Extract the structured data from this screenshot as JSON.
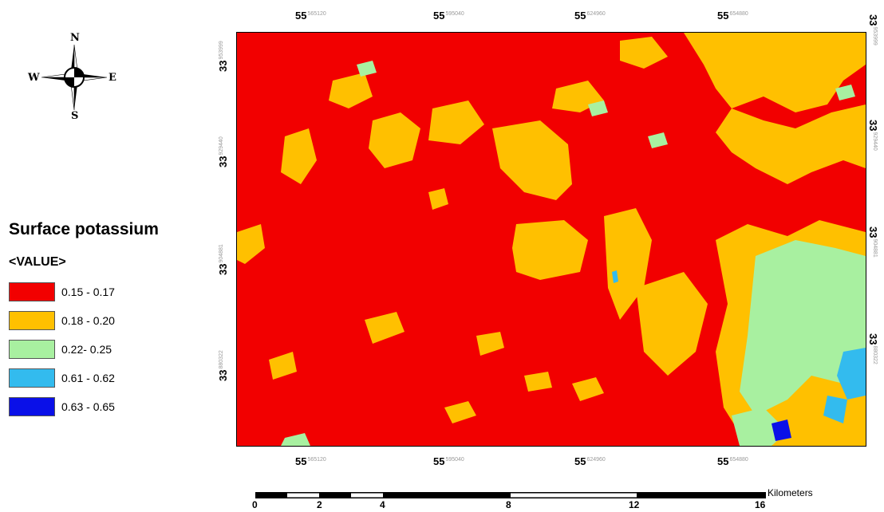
{
  "map": {
    "compass": {
      "north": "N",
      "south": "S",
      "east": "E",
      "west": "W"
    },
    "top_ticks": [
      {
        "major": "55",
        "minor": "565120"
      },
      {
        "major": "55",
        "minor": "595040"
      },
      {
        "major": "55",
        "minor": "624960"
      },
      {
        "major": "55",
        "minor": "654880"
      }
    ],
    "bottom_ticks": [
      {
        "major": "55",
        "minor": "565120"
      },
      {
        "major": "55",
        "minor": "595040"
      },
      {
        "major": "55",
        "minor": "624960"
      },
      {
        "major": "55",
        "minor": "654880"
      }
    ],
    "left_ticks": [
      {
        "major": "33",
        "minor": "953999"
      },
      {
        "major": "33",
        "minor": "929440"
      },
      {
        "major": "33",
        "minor": "904881"
      },
      {
        "major": "33",
        "minor": "880322"
      }
    ],
    "right_ticks": [
      {
        "major": "33",
        "minor": "953999"
      },
      {
        "major": "33",
        "minor": "929440"
      },
      {
        "major": "33",
        "minor": "904881"
      },
      {
        "major": "33",
        "minor": "880322"
      }
    ],
    "colors": {
      "low": "#f20000",
      "mid": "#ffc000",
      "high": "#a8f0a0",
      "vhigh": "#33bbee",
      "max": "#0a10e8"
    }
  },
  "legend": {
    "title": "Surface potassium",
    "subtitle": "<VALUE>",
    "items": [
      {
        "label": "0.15 - 0.17",
        "color": "#f20000"
      },
      {
        "label": "0.18 - 0.20",
        "color": "#ffc000"
      },
      {
        "label": "0.22- 0.25",
        "color": "#a8f0a0"
      },
      {
        "label": "0.61 - 0.62",
        "color": "#33bbee"
      },
      {
        "label": "0.63 - 0.65",
        "color": "#0a10e8"
      }
    ]
  },
  "scalebar": {
    "labels": [
      "0",
      "2",
      "4",
      "8",
      "12",
      "16"
    ],
    "unit": "Kilometers"
  }
}
